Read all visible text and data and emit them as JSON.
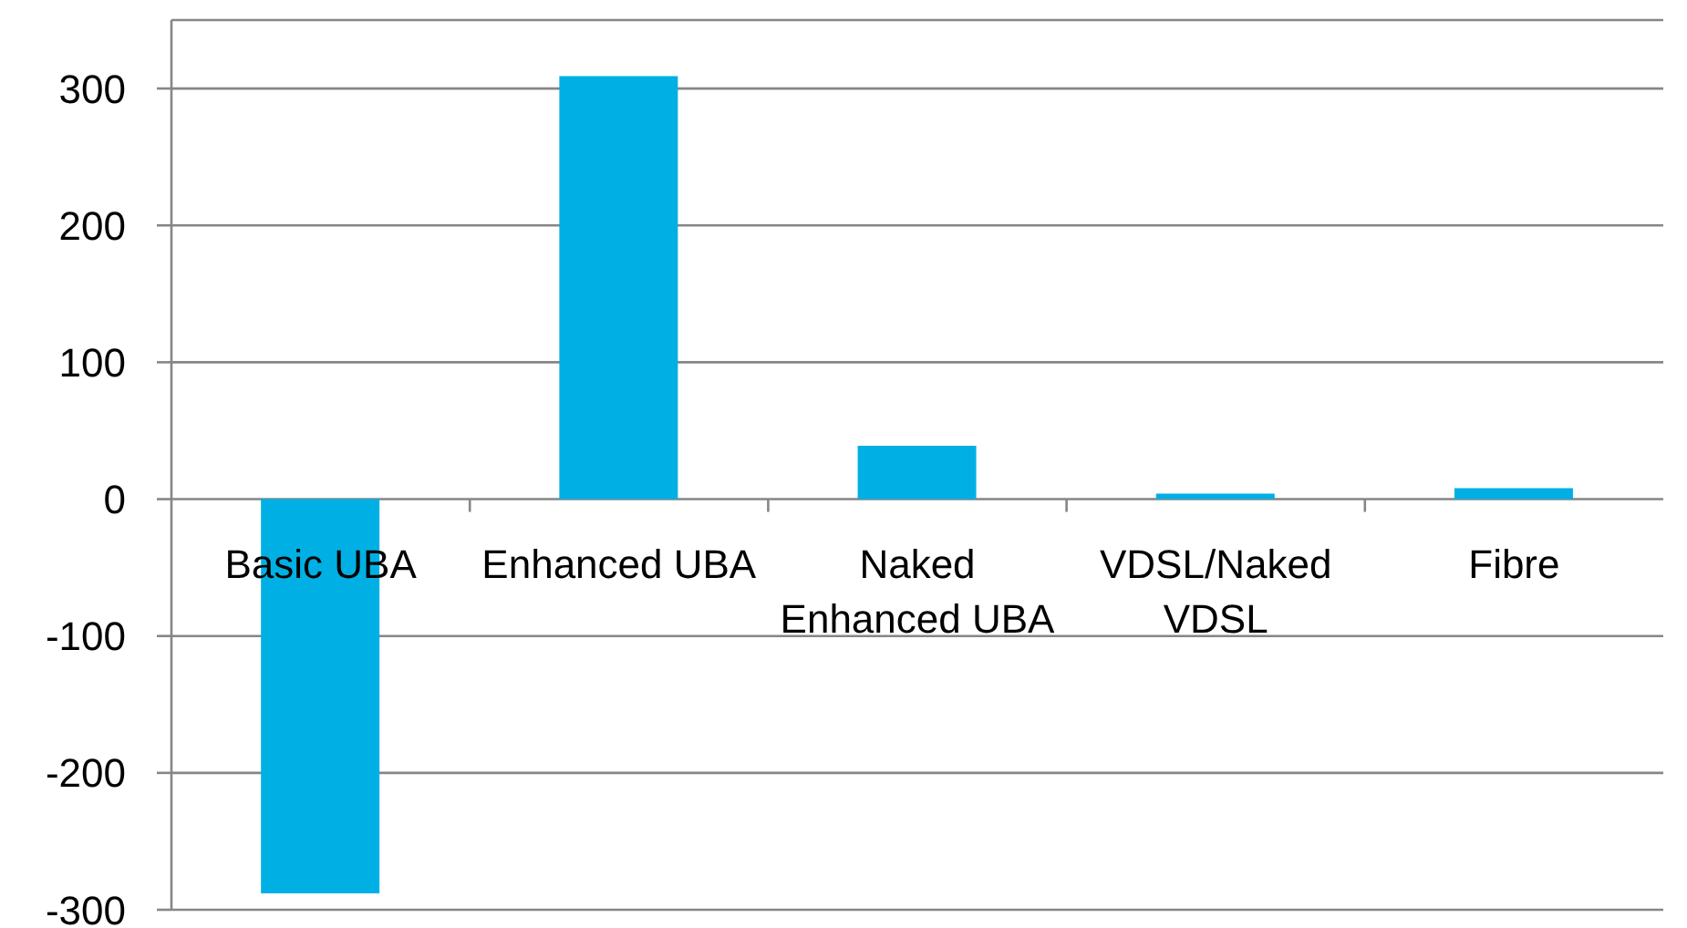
{
  "chart_data": {
    "type": "bar",
    "categories": [
      "Basic UBA",
      "Enhanced UBA",
      "Naked Enhanced UBA",
      "VDSL/Naked VDSL",
      "Fibre"
    ],
    "values": [
      -288,
      309,
      39,
      4,
      8
    ],
    "color": "#00b0e4",
    "ylim": [
      -300,
      350
    ],
    "yticks": [
      -300,
      -200,
      -100,
      0,
      100,
      200,
      300
    ],
    "grid": "y"
  }
}
